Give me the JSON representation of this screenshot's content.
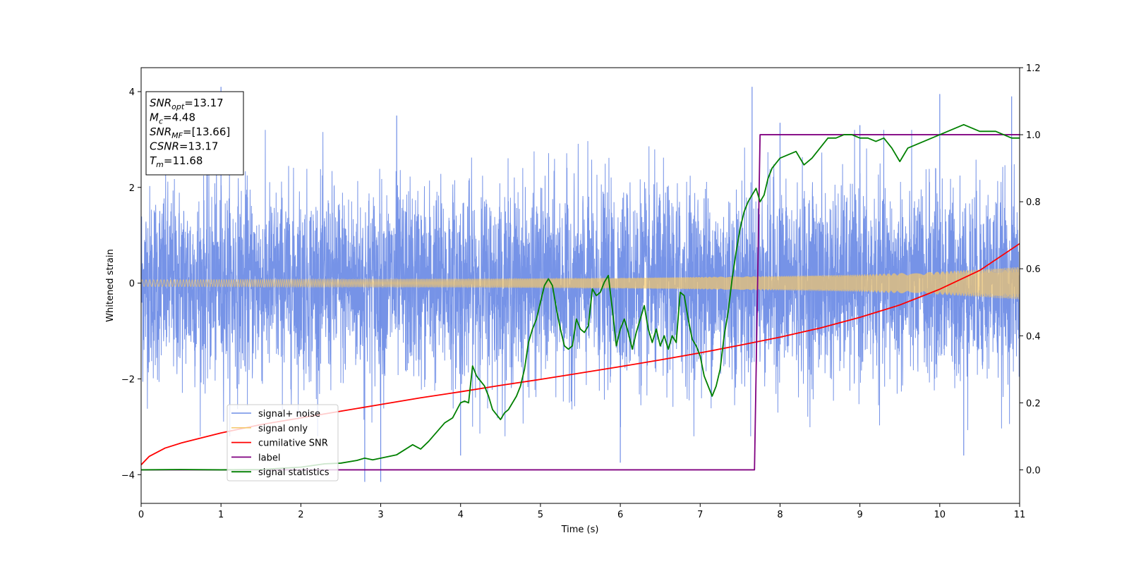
{
  "chart_data": {
    "type": "line",
    "xlabel": "Time (s)",
    "ylabel": "Whitened strain",
    "xlim": [
      0,
      11
    ],
    "ylim_left": [
      -4.6,
      4.5
    ],
    "ylim_right": [
      -0.1,
      1.2
    ],
    "x_ticks": [
      0,
      1,
      2,
      3,
      4,
      5,
      6,
      7,
      8,
      9,
      10,
      11
    ],
    "y_ticks_left": [
      -4,
      -2,
      0,
      2,
      4
    ],
    "y_ticks_right": [
      0.0,
      0.2,
      0.4,
      0.6,
      0.8,
      1.0,
      1.2
    ],
    "grid": false,
    "legend_location": "lower-left",
    "series": [
      {
        "name": "signal+ noise",
        "axis": "left",
        "color": "#6f8de6",
        "style": "noise",
        "base_amplitude": 1.0,
        "spikes": [
          [
            1.0,
            4.1
          ],
          [
            2.8,
            -4.15
          ],
          [
            3.0,
            -4.15
          ],
          [
            3.2,
            3.5
          ],
          [
            4.0,
            -3.6
          ],
          [
            6.0,
            -3.75
          ],
          [
            7.65,
            4.1
          ],
          [
            8.0,
            3.35
          ],
          [
            9.0,
            3.3
          ],
          [
            10.0,
            3.95
          ],
          [
            10.3,
            -3.6
          ],
          [
            10.9,
            3.9
          ]
        ]
      },
      {
        "name": "signal only",
        "axis": "left",
        "color": "#f5c76a",
        "style": "chirp",
        "envelope": [
          [
            0,
            0.07
          ],
          [
            2,
            0.08
          ],
          [
            4,
            0.09
          ],
          [
            6,
            0.11
          ],
          [
            8,
            0.15
          ],
          [
            9,
            0.18
          ],
          [
            10,
            0.24
          ],
          [
            11,
            0.34
          ]
        ]
      },
      {
        "name": "cumilative SNR",
        "axis": "right",
        "color": "#ff0000",
        "x": [
          0,
          0.1,
          0.3,
          0.5,
          1,
          1.5,
          2,
          2.5,
          3,
          3.5,
          4,
          4.5,
          5,
          5.5,
          6,
          6.5,
          7,
          7.5,
          8,
          8.5,
          9,
          9.5,
          10,
          10.5,
          11
        ],
        "y": [
          0.015,
          0.04,
          0.065,
          0.08,
          0.11,
          0.135,
          0.155,
          0.175,
          0.195,
          0.215,
          0.233,
          0.252,
          0.27,
          0.289,
          0.308,
          0.328,
          0.349,
          0.372,
          0.396,
          0.423,
          0.455,
          0.492,
          0.539,
          0.595,
          0.675
        ]
      },
      {
        "name": "label",
        "axis": "right",
        "color": "#800080",
        "x": [
          0,
          7.68,
          7.75,
          11
        ],
        "y": [
          0,
          0,
          1,
          1
        ]
      },
      {
        "name": "signal statistics",
        "axis": "right",
        "color": "#008000",
        "x": [
          0,
          0.5,
          1,
          1.5,
          2,
          2.3,
          2.5,
          2.7,
          2.8,
          2.9,
          3.0,
          3.1,
          3.2,
          3.3,
          3.4,
          3.5,
          3.6,
          3.8,
          3.9,
          4.0,
          4.05,
          4.1,
          4.15,
          4.2,
          4.3,
          4.35,
          4.4,
          4.5,
          4.55,
          4.6,
          4.7,
          4.75,
          4.8,
          4.85,
          4.9,
          4.95,
          5.0,
          5.05,
          5.1,
          5.15,
          5.2,
          5.25,
          5.3,
          5.35,
          5.4,
          5.45,
          5.5,
          5.55,
          5.6,
          5.65,
          5.7,
          5.75,
          5.8,
          5.85,
          5.9,
          5.95,
          6.0,
          6.05,
          6.1,
          6.15,
          6.2,
          6.25,
          6.3,
          6.35,
          6.4,
          6.45,
          6.5,
          6.55,
          6.6,
          6.65,
          6.7,
          6.75,
          6.8,
          6.85,
          6.9,
          6.95,
          7.0,
          7.05,
          7.1,
          7.15,
          7.2,
          7.25,
          7.3,
          7.35,
          7.4,
          7.45,
          7.5,
          7.55,
          7.6,
          7.65,
          7.7,
          7.75,
          7.8,
          7.85,
          7.9,
          8.0,
          8.1,
          8.2,
          8.3,
          8.4,
          8.5,
          8.6,
          8.7,
          8.8,
          8.9,
          9.0,
          9.1,
          9.2,
          9.3,
          9.4,
          9.5,
          9.6,
          9.7,
          9.8,
          9.9,
          10.0,
          10.1,
          10.2,
          10.3,
          10.4,
          10.5,
          10.6,
          10.7,
          10.8,
          10.9,
          11
        ],
        "y": [
          0,
          0.001,
          0.0,
          0.001,
          0.008,
          0.018,
          0.02,
          0.028,
          0.035,
          0.03,
          0.035,
          0.04,
          0.045,
          0.06,
          0.075,
          0.062,
          0.085,
          0.14,
          0.155,
          0.2,
          0.205,
          0.2,
          0.31,
          0.28,
          0.25,
          0.22,
          0.18,
          0.15,
          0.17,
          0.18,
          0.22,
          0.25,
          0.3,
          0.38,
          0.42,
          0.45,
          0.5,
          0.55,
          0.57,
          0.55,
          0.48,
          0.42,
          0.37,
          0.36,
          0.37,
          0.45,
          0.42,
          0.41,
          0.43,
          0.54,
          0.52,
          0.53,
          0.56,
          0.58,
          0.48,
          0.37,
          0.42,
          0.45,
          0.41,
          0.36,
          0.41,
          0.45,
          0.49,
          0.42,
          0.38,
          0.42,
          0.37,
          0.4,
          0.36,
          0.4,
          0.38,
          0.53,
          0.52,
          0.45,
          0.39,
          0.37,
          0.34,
          0.28,
          0.25,
          0.22,
          0.25,
          0.3,
          0.4,
          0.47,
          0.57,
          0.65,
          0.72,
          0.77,
          0.8,
          0.82,
          0.84,
          0.8,
          0.82,
          0.87,
          0.9,
          0.93,
          0.94,
          0.95,
          0.91,
          0.93,
          0.96,
          0.99,
          0.99,
          1.0,
          1.0,
          0.99,
          0.99,
          0.98,
          0.99,
          0.96,
          0.92,
          0.96,
          0.97,
          0.98,
          0.99,
          1.0,
          1.01,
          1.02,
          1.03,
          1.02,
          1.01,
          1.01,
          1.01,
          1.0,
          0.99,
          0.99
        ]
      }
    ],
    "annotation": {
      "lines": [
        {
          "label": "SNR",
          "sub": "opt",
          "value": "=13.17"
        },
        {
          "label": "M",
          "sub": "c",
          "value": "=4.48"
        },
        {
          "label": "SNR",
          "sub": "MF",
          "value": "=[13.66]"
        },
        {
          "label": "CSNR",
          "sub": "",
          "value": "=13.17"
        },
        {
          "label": "T",
          "sub": "m",
          "value": "=11.68"
        }
      ]
    }
  }
}
